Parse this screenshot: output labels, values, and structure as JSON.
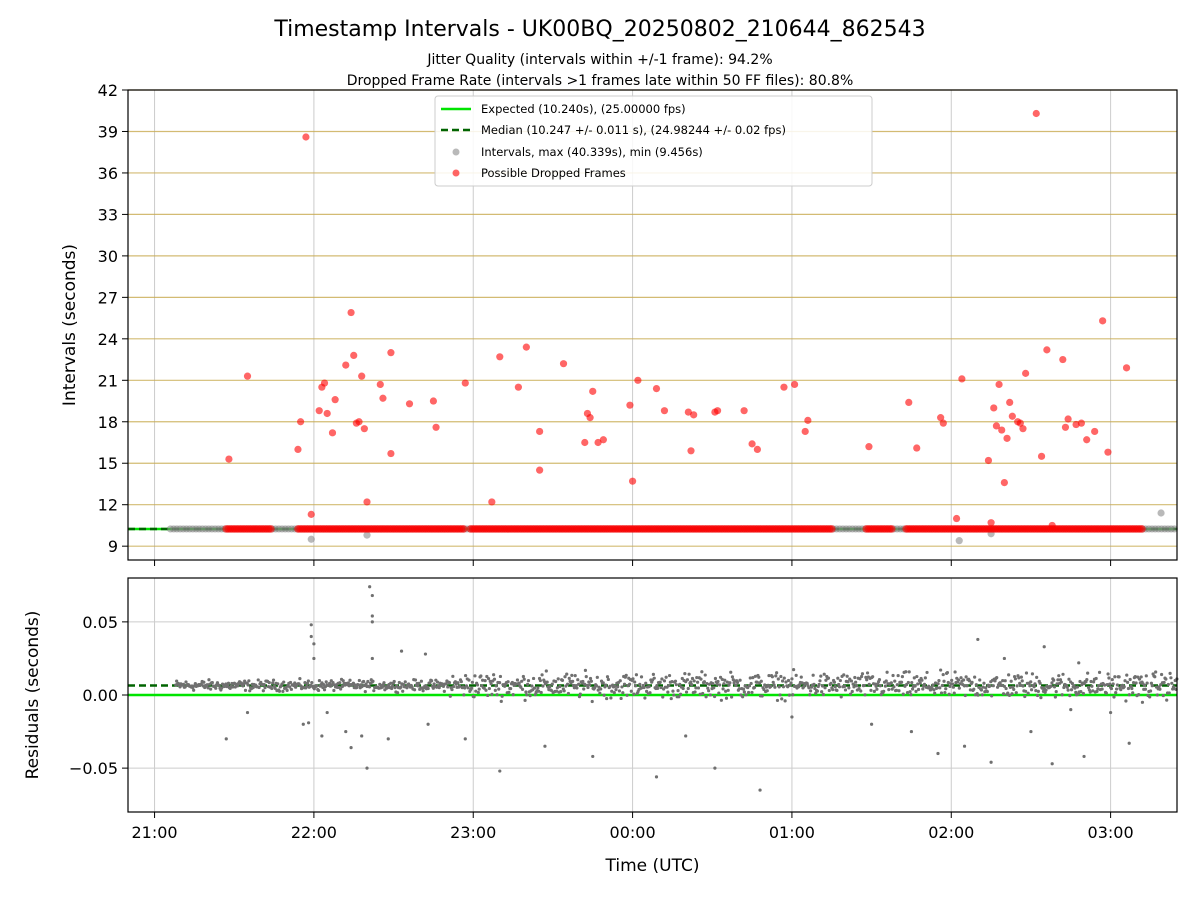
{
  "figure": {
    "title": "Timestamp Intervals - UK00BQ_20250802_210644_862543",
    "subtitle_1": "Jitter Quality (intervals within +/-1 frame): 94.2%",
    "subtitle_2": "Dropped Frame Rate (intervals >1 frames late within 50 FF files): 80.8%"
  },
  "colors": {
    "expected": "#00e400",
    "median": "#006400",
    "intervals": "#808080",
    "dropped": "#ff0000",
    "band": "#c8aa50",
    "grid": "#cccccc"
  },
  "chart_data": [
    {
      "type": "scatter",
      "ylabel": "Intervals (seconds)",
      "ylim": [
        8,
        42
      ],
      "y_ticks": [
        9,
        12,
        15,
        18,
        21,
        24,
        27,
        30,
        33,
        36,
        39,
        42
      ],
      "x_time_range": [
        "20:50",
        "03:25"
      ],
      "x_ticks": [
        "21:00",
        "22:00",
        "23:00",
        "00:00",
        "01:00",
        "02:00",
        "03:00"
      ],
      "legend_position": "upper center",
      "expected_value": 10.24,
      "median_value": 10.247,
      "series": [
        {
          "name": "Expected (10.240s), (25.00000 fps)",
          "kind": "line",
          "style": "solid"
        },
        {
          "name": "Median (10.247 +/- 0.011 s), (24.98244 +/- 0.02 fps)",
          "kind": "line",
          "style": "dashed"
        },
        {
          "name": "Intervals, max (40.339s), min (9.456s)",
          "kind": "points",
          "baseline_span": [
            "21:06",
            "03:25"
          ],
          "points": [
            [
              "21:59",
              9.5
            ],
            [
              "22:20",
              9.8
            ],
            [
              "02:03",
              9.4
            ],
            [
              "02:15",
              9.9
            ],
            [
              "03:19",
              11.4
            ]
          ]
        },
        {
          "name": "Possible Dropped Frames",
          "kind": "points",
          "baseline_segments": [
            [
              "21:27",
              "21:44"
            ],
            [
              "21:54",
              "22:57"
            ],
            [
              "22:59",
              "01:15"
            ],
            [
              "01:28",
              "01:38"
            ],
            [
              "01:43",
              "03:12"
            ]
          ],
          "points": [
            [
              "21:28",
              15.3
            ],
            [
              "21:35",
              21.3
            ],
            [
              "21:54",
              16.0
            ],
            [
              "21:55",
              18.0
            ],
            [
              "21:57",
              38.6
            ],
            [
              "21:59",
              11.3
            ],
            [
              "22:02",
              18.8
            ],
            [
              "22:03",
              20.5
            ],
            [
              "22:04",
              20.8
            ],
            [
              "22:05",
              18.6
            ],
            [
              "22:07",
              17.2
            ],
            [
              "22:08",
              19.6
            ],
            [
              "22:12",
              22.1
            ],
            [
              "22:14",
              25.9
            ],
            [
              "22:15",
              22.8
            ],
            [
              "22:16",
              17.9
            ],
            [
              "22:17",
              18.0
            ],
            [
              "22:18",
              21.3
            ],
            [
              "22:19",
              17.5
            ],
            [
              "22:20",
              12.2
            ],
            [
              "22:25",
              20.7
            ],
            [
              "22:26",
              19.7
            ],
            [
              "22:29",
              15.7
            ],
            [
              "22:29",
              23.0
            ],
            [
              "22:36",
              19.3
            ],
            [
              "22:45",
              19.5
            ],
            [
              "22:46",
              17.6
            ],
            [
              "22:57",
              20.8
            ],
            [
              "23:07",
              12.2
            ],
            [
              "23:10",
              22.7
            ],
            [
              "23:17",
              20.5
            ],
            [
              "23:20",
              23.4
            ],
            [
              "23:25",
              14.5
            ],
            [
              "23:25",
              17.3
            ],
            [
              "23:34",
              22.2
            ],
            [
              "23:42",
              16.5
            ],
            [
              "23:43",
              18.6
            ],
            [
              "23:44",
              18.3
            ],
            [
              "23:45",
              20.2
            ],
            [
              "23:47",
              16.5
            ],
            [
              "23:49",
              16.7
            ],
            [
              "23:59",
              19.2
            ],
            [
              "24:00",
              13.7
            ],
            [
              "24:02",
              21.0
            ],
            [
              "24:09",
              20.4
            ],
            [
              "24:12",
              18.8
            ],
            [
              "24:21",
              18.7
            ],
            [
              "24:23",
              18.5
            ],
            [
              "24:22",
              15.9
            ],
            [
              "24:31",
              18.7
            ],
            [
              "24:32",
              18.8
            ],
            [
              "24:42",
              18.8
            ],
            [
              "24:45",
              16.4
            ],
            [
              "24:47",
              16.0
            ],
            [
              "24:57",
              20.5
            ],
            [
              "25:01",
              20.7
            ],
            [
              "25:05",
              17.3
            ],
            [
              "25:06",
              18.1
            ],
            [
              "25:29",
              16.2
            ],
            [
              "25:44",
              19.4
            ],
            [
              "25:47",
              16.1
            ],
            [
              "25:56",
              18.3
            ],
            [
              "25:57",
              17.9
            ],
            [
              "26:02",
              11.0
            ],
            [
              "26:04",
              21.1
            ],
            [
              "26:14",
              15.2
            ],
            [
              "26:15",
              10.7
            ],
            [
              "26:16",
              19.0
            ],
            [
              "26:17",
              17.7
            ],
            [
              "26:18",
              20.7
            ],
            [
              "26:19",
              17.4
            ],
            [
              "26:20",
              13.6
            ],
            [
              "26:21",
              16.8
            ],
            [
              "26:22",
              19.4
            ],
            [
              "26:23",
              18.4
            ],
            [
              "26:25",
              18.0
            ],
            [
              "26:26",
              17.9
            ],
            [
              "26:27",
              17.5
            ],
            [
              "26:28",
              21.5
            ],
            [
              "26:32",
              40.3
            ],
            [
              "26:34",
              15.5
            ],
            [
              "26:36",
              23.2
            ],
            [
              "26:38",
              10.5
            ],
            [
              "26:42",
              22.5
            ],
            [
              "26:43",
              17.6
            ],
            [
              "26:44",
              18.2
            ],
            [
              "26:47",
              17.8
            ],
            [
              "26:49",
              17.9
            ],
            [
              "26:51",
              16.7
            ],
            [
              "26:54",
              17.3
            ],
            [
              "26:57",
              25.3
            ],
            [
              "26:59",
              15.8
            ],
            [
              "27:06",
              21.9
            ]
          ]
        }
      ]
    },
    {
      "type": "scatter",
      "xlabel": "Time (UTC)",
      "ylabel": "Residuals (seconds)",
      "ylim": [
        -0.08,
        0.08
      ],
      "y_ticks": [
        "0.05",
        "0.00",
        "−0.05"
      ],
      "x_time_range": [
        "20:50",
        "03:25"
      ],
      "x_ticks": [
        "21:00",
        "22:00",
        "23:00",
        "00:00",
        "01:00",
        "02:00",
        "03:00"
      ],
      "expected_value": 0.0,
      "median_value": 0.0065,
      "series": [
        {
          "name": "Expected",
          "kind": "line",
          "style": "solid"
        },
        {
          "name": "Median",
          "kind": "line",
          "style": "dashed"
        },
        {
          "name": "Residuals",
          "kind": "points",
          "dense_span": [
            "21:08",
            "03:25"
          ],
          "points": [
            [
              "21:27",
              -0.03
            ],
            [
              "21:35",
              -0.012
            ],
            [
              "21:56",
              -0.02
            ],
            [
              "21:59",
              0.048
            ],
            [
              "21:59",
              0.04
            ],
            [
              "22:00",
              0.035
            ],
            [
              "22:00",
              0.025
            ],
            [
              "21:58",
              -0.019
            ],
            [
              "22:03",
              -0.028
            ],
            [
              "22:05",
              -0.012
            ],
            [
              "22:12",
              -0.025
            ],
            [
              "22:14",
              -0.036
            ],
            [
              "22:18",
              -0.028
            ],
            [
              "22:21",
              0.074
            ],
            [
              "22:22",
              0.068
            ],
            [
              "22:22",
              0.054
            ],
            [
              "22:22",
              0.05
            ],
            [
              "22:20",
              -0.05
            ],
            [
              "22:22",
              0.025
            ],
            [
              "22:28",
              -0.03
            ],
            [
              "22:33",
              0.03
            ],
            [
              "22:42",
              0.028
            ],
            [
              "22:43",
              -0.02
            ],
            [
              "22:57",
              -0.03
            ],
            [
              "23:10",
              -0.052
            ],
            [
              "23:27",
              -0.035
            ],
            [
              "23:45",
              -0.042
            ],
            [
              "24:09",
              -0.056
            ],
            [
              "24:20",
              -0.028
            ],
            [
              "24:31",
              -0.05
            ],
            [
              "24:48",
              -0.065
            ],
            [
              "25:00",
              -0.015
            ],
            [
              "25:30",
              -0.02
            ],
            [
              "25:45",
              -0.025
            ],
            [
              "25:55",
              -0.04
            ],
            [
              "26:05",
              -0.035
            ],
            [
              "26:10",
              0.038
            ],
            [
              "26:15",
              -0.046
            ],
            [
              "26:20",
              0.025
            ],
            [
              "26:30",
              -0.025
            ],
            [
              "26:35",
              0.033
            ],
            [
              "26:38",
              -0.047
            ],
            [
              "26:45",
              -0.01
            ],
            [
              "26:50",
              -0.042
            ],
            [
              "26:48",
              0.022
            ],
            [
              "27:00",
              -0.012
            ],
            [
              "27:07",
              -0.033
            ],
            [
              "27:12",
              -0.005
            ]
          ]
        }
      ]
    }
  ]
}
